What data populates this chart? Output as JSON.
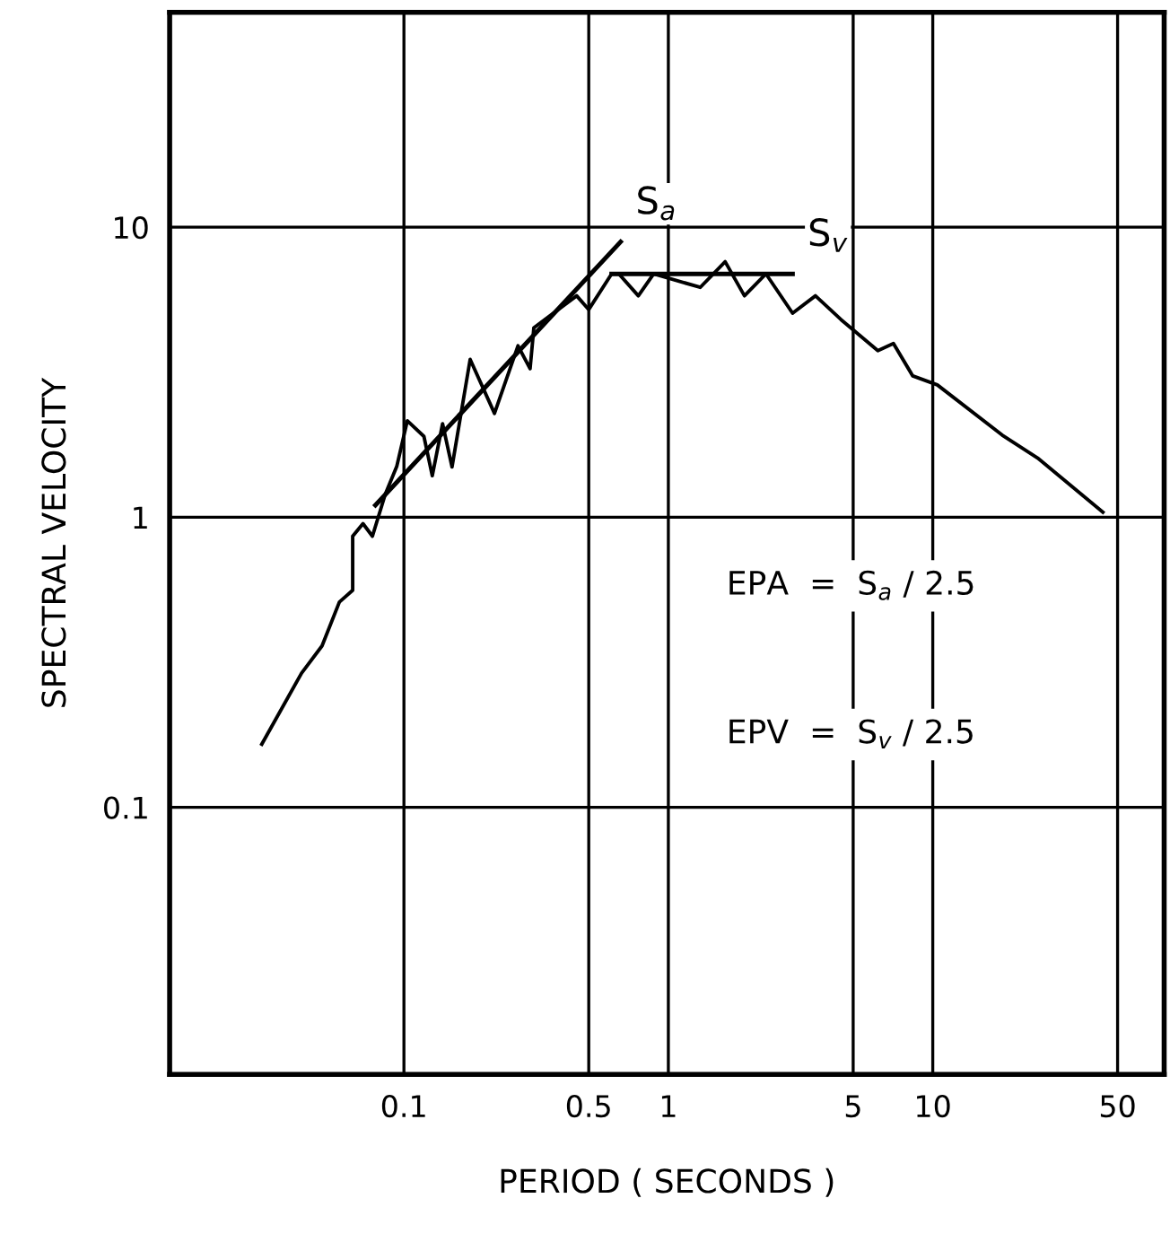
{
  "chart_data": {
    "type": "line",
    "xlabel": "PERIOD ( SECONDS )",
    "ylabel": "SPECTRAL VELOCITY",
    "log": "xy",
    "grid": true,
    "legend": false,
    "marker": "none",
    "line_style": "solid",
    "xlim": [
      0.013,
      75
    ],
    "ylim": [
      0.012,
      55
    ],
    "xticks": [
      {
        "value": 0.1,
        "label": "0.1"
      },
      {
        "value": 0.5,
        "label": "0.5"
      },
      1,
      5,
      10,
      50
    ],
    "yticks": [
      {
        "value": 0.1,
        "label": "0.1"
      },
      1,
      10
    ],
    "series": [
      {
        "color": "#000000",
        "x": [
          0.029,
          0.041,
          0.049,
          0.057,
          0.064,
          0.064,
          0.07,
          0.076,
          0.085,
          0.094,
          0.103,
          0.119,
          0.128,
          0.14,
          0.152,
          0.178,
          0.22,
          0.27,
          0.3,
          0.31,
          0.45,
          0.5,
          0.61,
          0.65,
          0.77,
          0.88,
          1.32,
          1.64,
          1.94,
          2.34,
          2.95,
          3.6,
          4.5,
          6.2,
          7.1,
          8.4,
          10.4,
          18.3,
          24.9,
          44
        ],
        "values": [
          0.165,
          0.29,
          0.36,
          0.51,
          0.56,
          0.86,
          0.95,
          0.86,
          1.2,
          1.5,
          2.15,
          1.9,
          1.39,
          2.1,
          1.49,
          3.5,
          2.28,
          3.9,
          3.25,
          4.5,
          5.8,
          5.2,
          6.9,
          6.9,
          5.8,
          6.9,
          6.2,
          7.6,
          5.8,
          6.9,
          5.05,
          5.8,
          4.8,
          3.75,
          3.97,
          3.07,
          2.86,
          1.92,
          1.6,
          1.04
        ]
      },
      {
        "name": "S$_{a}$",
        "color": "#000000",
        "x": [
          0.078,
          0.66
        ],
        "values": [
          1.1,
          8.9
        ]
      },
      {
        "name": "S$_{v}$",
        "color": "#000000",
        "x": [
          0.61,
          2.95
        ],
        "values": [
          6.9,
          6.9
        ]
      }
    ],
    "annotations": [
      "EPA  =  S$_{a}$ / 2.5",
      "EPV  =  S$_{v}$ / 2.5"
    ]
  }
}
